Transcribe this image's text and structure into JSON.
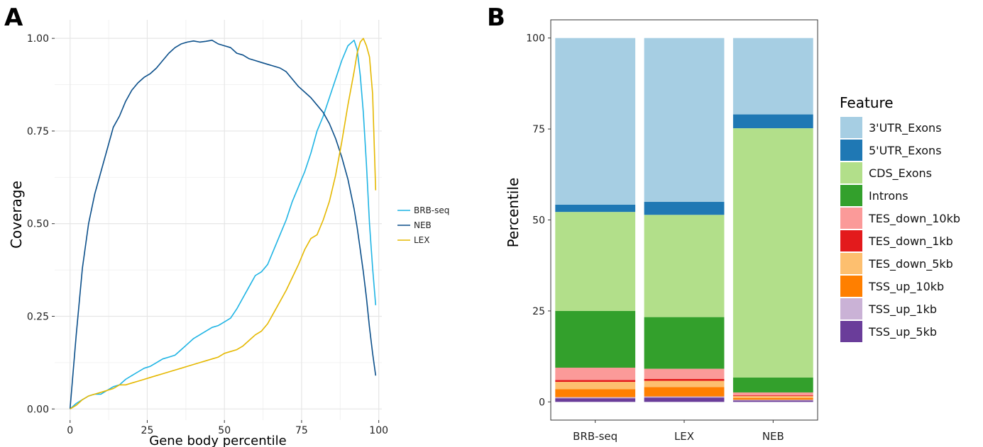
{
  "panels": {
    "a_label": "A",
    "b_label": "B"
  },
  "colors": {
    "BRB-seq": "#1fb4e4",
    "NEB": "#0b4f8a",
    "LEX": "#e5b800",
    "3'UTR_Exons": "#a6cee3",
    "5'UTR_Exons": "#1f78b4",
    "CDS_Exons": "#b2df8a",
    "Introns": "#33a02c",
    "TES_down_10kb": "#fb9a99",
    "TES_down_1kb": "#e31a1c",
    "TES_down_5kb": "#fdbf6f",
    "TSS_up_10kb": "#ff7f00",
    "TSS_up_1kb": "#cab2d6",
    "TSS_up_5kb": "#6a3d9a"
  },
  "chart_data": [
    {
      "type": "line",
      "panel": "A",
      "xlabel": "Gene body percentile",
      "ylabel": "Coverage",
      "xlim": [
        -5,
        101
      ],
      "ylim": [
        -0.03,
        1.05
      ],
      "xticks": [
        "0",
        "25",
        "50",
        "75",
        "100"
      ],
      "yticks": [
        "0.00",
        "0.25",
        "0.50",
        "0.75",
        "1.00"
      ],
      "grid": true,
      "legend_position": "right",
      "x": [
        0,
        2,
        4,
        6,
        8,
        10,
        12,
        14,
        16,
        18,
        20,
        22,
        24,
        26,
        28,
        30,
        32,
        34,
        36,
        38,
        40,
        42,
        44,
        46,
        48,
        50,
        52,
        54,
        56,
        58,
        60,
        62,
        64,
        66,
        68,
        70,
        72,
        74,
        76,
        78,
        80,
        82,
        84,
        86,
        88,
        90,
        92,
        93,
        94,
        95,
        96,
        97,
        98,
        99
      ],
      "series": [
        {
          "name": "BRB-seq",
          "values": [
            0.0,
            0.015,
            0.025,
            0.035,
            0.04,
            0.04,
            0.05,
            0.06,
            0.065,
            0.08,
            0.09,
            0.1,
            0.11,
            0.115,
            0.125,
            0.135,
            0.14,
            0.145,
            0.16,
            0.175,
            0.19,
            0.2,
            0.21,
            0.22,
            0.225,
            0.235,
            0.245,
            0.27,
            0.3,
            0.33,
            0.36,
            0.37,
            0.39,
            0.43,
            0.47,
            0.51,
            0.56,
            0.6,
            0.64,
            0.69,
            0.75,
            0.79,
            0.84,
            0.89,
            0.94,
            0.98,
            0.995,
            0.97,
            0.9,
            0.8,
            0.66,
            0.5,
            0.38,
            0.28
          ]
        },
        {
          "name": "NEB",
          "values": [
            0.0,
            0.2,
            0.38,
            0.5,
            0.58,
            0.64,
            0.7,
            0.76,
            0.79,
            0.83,
            0.86,
            0.88,
            0.895,
            0.905,
            0.92,
            0.94,
            0.96,
            0.975,
            0.985,
            0.99,
            0.993,
            0.99,
            0.992,
            0.995,
            0.985,
            0.98,
            0.975,
            0.96,
            0.955,
            0.945,
            0.94,
            0.935,
            0.93,
            0.925,
            0.92,
            0.91,
            0.89,
            0.87,
            0.855,
            0.84,
            0.82,
            0.8,
            0.77,
            0.73,
            0.68,
            0.62,
            0.54,
            0.49,
            0.43,
            0.37,
            0.3,
            0.22,
            0.15,
            0.09
          ]
        },
        {
          "name": "LEX",
          "values": [
            0.0,
            0.01,
            0.025,
            0.035,
            0.04,
            0.045,
            0.05,
            0.055,
            0.065,
            0.065,
            0.07,
            0.075,
            0.08,
            0.085,
            0.09,
            0.095,
            0.1,
            0.105,
            0.11,
            0.115,
            0.12,
            0.125,
            0.13,
            0.135,
            0.14,
            0.15,
            0.155,
            0.16,
            0.17,
            0.185,
            0.2,
            0.21,
            0.23,
            0.26,
            0.29,
            0.32,
            0.355,
            0.39,
            0.43,
            0.46,
            0.47,
            0.51,
            0.56,
            0.63,
            0.72,
            0.82,
            0.91,
            0.96,
            0.99,
            1.0,
            0.98,
            0.95,
            0.85,
            0.59
          ]
        }
      ]
    },
    {
      "type": "bar",
      "stacked": true,
      "panel": "B",
      "xlabel": "",
      "ylabel": "Percentile",
      "ylim": [
        -5,
        105
      ],
      "yticks": [
        "0",
        "25",
        "50",
        "75",
        "100"
      ],
      "grid": false,
      "categories": [
        "BRB-seq",
        "LEX",
        "NEB"
      ],
      "legend_title": "Feature",
      "legend_position": "right",
      "series": [
        {
          "name": "TSS_up_5kb",
          "values": [
            1.0,
            1.2,
            0.4
          ]
        },
        {
          "name": "TSS_up_1kb",
          "values": [
            0.3,
            0.3,
            0.2
          ]
        },
        {
          "name": "TSS_up_10kb",
          "values": [
            2.2,
            2.6,
            0.5
          ]
        },
        {
          "name": "TES_down_5kb",
          "values": [
            2.0,
            1.7,
            0.5
          ]
        },
        {
          "name": "TES_down_1kb",
          "values": [
            0.5,
            0.5,
            0.2
          ]
        },
        {
          "name": "TES_down_10kb",
          "values": [
            3.4,
            2.8,
            0.8
          ]
        },
        {
          "name": "Introns",
          "values": [
            15.6,
            14.2,
            4.1
          ]
        },
        {
          "name": "CDS_Exons",
          "values": [
            27.2,
            28.1,
            68.5
          ]
        },
        {
          "name": "5'UTR_Exons",
          "values": [
            2.0,
            3.6,
            3.8
          ]
        },
        {
          "name": "3'UTR_Exons",
          "values": [
            45.8,
            45.0,
            21.0
          ]
        }
      ],
      "legend_order": [
        "3'UTR_Exons",
        "5'UTR_Exons",
        "CDS_Exons",
        "Introns",
        "TES_down_10kb",
        "TES_down_1kb",
        "TES_down_5kb",
        "TSS_up_10kb",
        "TSS_up_1kb",
        "TSS_up_5kb"
      ]
    }
  ]
}
